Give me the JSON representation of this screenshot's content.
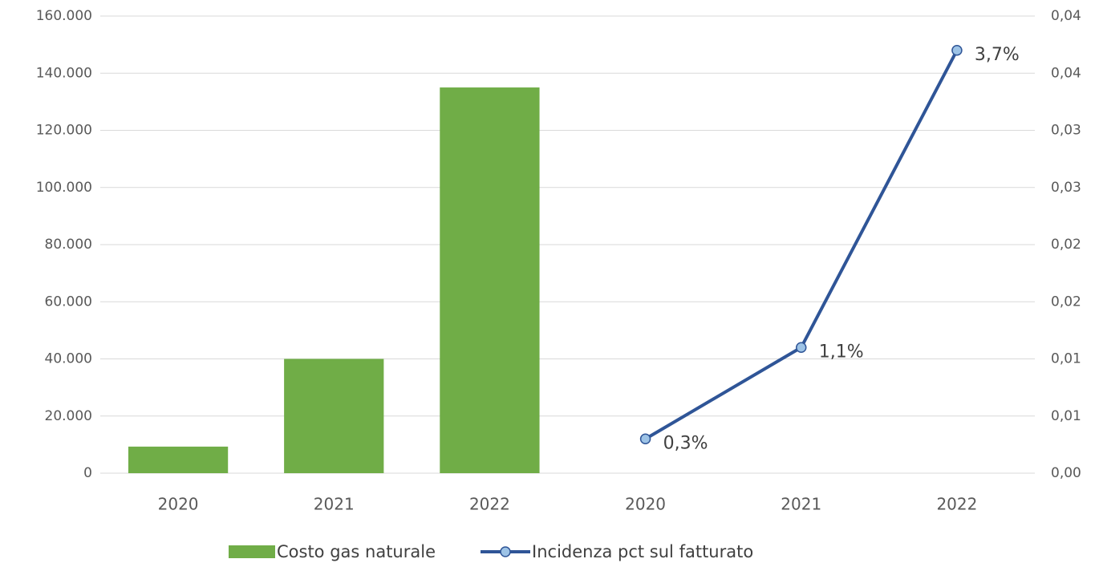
{
  "chart_data": {
    "type": "bar+line",
    "categories": [
      "2020",
      "2021",
      "2022",
      "2020",
      "2021",
      "2022"
    ],
    "series": [
      {
        "name": "Costo gas naturale",
        "type": "bar",
        "color": "#70ad47",
        "values": [
          9300,
          40000,
          135000,
          null,
          null,
          null
        ]
      },
      {
        "name": "Incidenza pct sul fatturato",
        "type": "line",
        "axis": "y2",
        "color": "#2f5597",
        "marker_color": "#9dc3e6",
        "values": [
          null,
          null,
          null,
          0.003,
          0.011,
          0.037
        ],
        "value_labels": [
          null,
          null,
          null,
          "0,3%",
          "1,1%",
          "3,7%"
        ]
      }
    ],
    "ylim": [
      0,
      160000
    ],
    "yticks": [
      0,
      {
        "value": 20000,
        "label": "20.000"
      },
      {
        "value": 40000,
        "label": "40.000"
      },
      {
        "value": 60000,
        "label": "60.000"
      },
      {
        "value": 80000,
        "label": "80.000"
      },
      {
        "value": 100000,
        "label": "100.000"
      },
      {
        "value": 120000,
        "label": "120.000"
      },
      {
        "value": 140000,
        "label": "140.000"
      },
      {
        "value": 160000,
        "label": "160.000"
      }
    ],
    "y2lim": [
      0,
      0.04
    ],
    "y2ticks": [
      {
        "value": 0,
        "label": "0,00"
      },
      {
        "value": 0.005,
        "label": "0,01"
      },
      {
        "value": 0.01,
        "label": "0,01"
      },
      {
        "value": 0.015,
        "label": "0,02"
      },
      {
        "value": 0.02,
        "label": "0,02"
      },
      {
        "value": 0.025,
        "label": "0,03"
      },
      {
        "value": 0.03,
        "label": "0,03"
      },
      {
        "value": 0.035,
        "label": "0,04"
      },
      {
        "value": 0.04,
        "label": "0,04"
      }
    ],
    "grid": true,
    "legend": "bottom"
  }
}
